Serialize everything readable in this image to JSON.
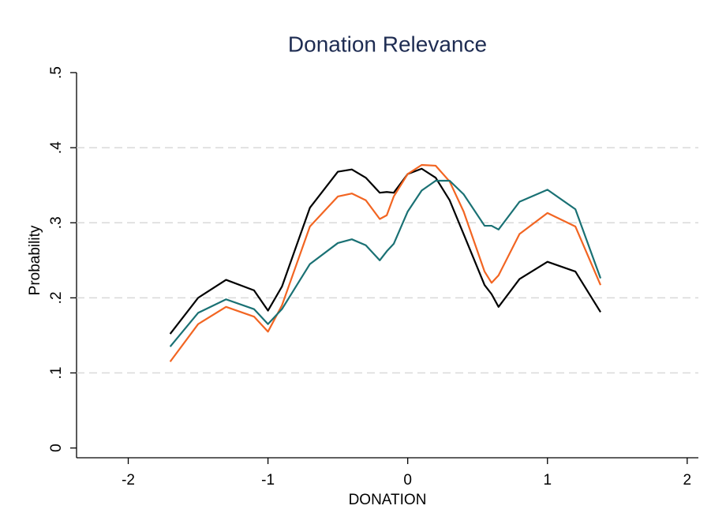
{
  "chart_data": {
    "type": "line",
    "title": "Donation Relevance",
    "x_label": "DONATION",
    "y_label": "Probability",
    "x": [
      -1.7,
      -1.5,
      -1.3,
      -1.1,
      -1.0,
      -0.9,
      -0.7,
      -0.5,
      -0.4,
      -0.3,
      -0.2,
      -0.15,
      -0.1,
      0,
      0.1,
      0.2,
      0.3,
      0.4,
      0.55,
      0.6,
      0.65,
      0.8,
      1.0,
      1.2,
      1.38
    ],
    "series": [
      {
        "color": "#000000",
        "values": [
          0.152,
          0.2,
          0.224,
          0.21,
          0.183,
          0.215,
          0.32,
          0.368,
          0.371,
          0.36,
          0.34,
          0.341,
          0.34,
          0.365,
          0.372,
          0.36,
          0.33,
          0.285,
          0.217,
          0.205,
          0.188,
          0.225,
          0.248,
          0.235,
          0.181
        ]
      },
      {
        "color": "#f26522",
        "values": [
          0.115,
          0.165,
          0.188,
          0.175,
          0.155,
          0.19,
          0.295,
          0.335,
          0.339,
          0.33,
          0.305,
          0.31,
          0.335,
          0.365,
          0.377,
          0.376,
          0.355,
          0.315,
          0.235,
          0.22,
          0.23,
          0.285,
          0.313,
          0.295,
          0.217
        ]
      },
      {
        "color": "#1a7174",
        "values": [
          0.135,
          0.18,
          0.198,
          0.185,
          0.165,
          0.185,
          0.245,
          0.273,
          0.278,
          0.27,
          0.25,
          0.262,
          0.272,
          0.315,
          0.343,
          0.356,
          0.356,
          0.338,
          0.296,
          0.296,
          0.291,
          0.328,
          0.344,
          0.318,
          0.226
        ]
      }
    ],
    "xlim": [
      -2.37,
      2.08
    ],
    "xticks": [
      -2,
      -1,
      0,
      1,
      2
    ],
    "ylim": [
      -0.013,
      0.5
    ],
    "yticks": [
      0,
      {
        "value": 0.1,
        "label": ".1"
      },
      {
        "value": 0.2,
        "label": ".2"
      },
      {
        "value": 0.3,
        "label": ".3"
      },
      {
        "value": 0.4,
        "label": ".4"
      },
      {
        "value": 0.5,
        "label": ".5"
      }
    ],
    "grid": true
  }
}
